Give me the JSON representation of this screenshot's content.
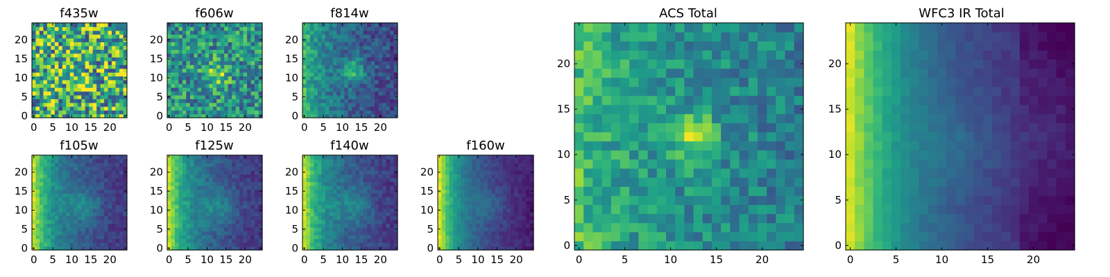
{
  "chart_data": [
    {
      "type": "heatmap",
      "title": "f435w",
      "pattern": "noisy",
      "grid": 25,
      "xlim": [
        0,
        24
      ],
      "ylim": [
        0,
        24
      ],
      "xticks": [
        "0",
        "5",
        "10",
        "15",
        "20"
      ],
      "yticks": [
        "0",
        "5",
        "10",
        "15",
        "20"
      ],
      "colormap": "viridis"
    },
    {
      "type": "heatmap",
      "title": "f606w",
      "pattern": "noisy_source",
      "grid": 25,
      "xlim": [
        0,
        24
      ],
      "ylim": [
        0,
        24
      ],
      "xticks": [
        "0",
        "5",
        "10",
        "15",
        "20"
      ],
      "yticks": [
        "0",
        "5",
        "10",
        "15",
        "20"
      ],
      "colormap": "viridis"
    },
    {
      "type": "heatmap",
      "title": "f814w",
      "pattern": "source_edge",
      "grid": 25,
      "xlim": [
        0,
        24
      ],
      "ylim": [
        0,
        24
      ],
      "xticks": [
        "0",
        "5",
        "10",
        "15",
        "20"
      ],
      "yticks": [
        "0",
        "5",
        "10",
        "15",
        "20"
      ],
      "colormap": "viridis"
    },
    {
      "type": "heatmap",
      "title": "f105w",
      "pattern": "ir",
      "grid": 25,
      "xlim": [
        0,
        24
      ],
      "ylim": [
        0,
        24
      ],
      "xticks": [
        "0",
        "5",
        "10",
        "15",
        "20"
      ],
      "yticks": [
        "0",
        "5",
        "10",
        "15",
        "20"
      ],
      "colormap": "viridis"
    },
    {
      "type": "heatmap",
      "title": "f125w",
      "pattern": "ir",
      "grid": 25,
      "xlim": [
        0,
        24
      ],
      "ylim": [
        0,
        24
      ],
      "xticks": [
        "0",
        "5",
        "10",
        "15",
        "20"
      ],
      "yticks": [
        "0",
        "5",
        "10",
        "15",
        "20"
      ],
      "colormap": "viridis"
    },
    {
      "type": "heatmap",
      "title": "f140w",
      "pattern": "ir",
      "grid": 25,
      "xlim": [
        0,
        24
      ],
      "ylim": [
        0,
        24
      ],
      "xticks": [
        "0",
        "5",
        "10",
        "15",
        "20"
      ],
      "yticks": [
        "0",
        "5",
        "10",
        "15",
        "20"
      ],
      "colormap": "viridis"
    },
    {
      "type": "heatmap",
      "title": "f160w",
      "pattern": "ir_smooth",
      "grid": 25,
      "xlim": [
        0,
        24
      ],
      "ylim": [
        0,
        24
      ],
      "xticks": [
        "0",
        "5",
        "10",
        "15",
        "20"
      ],
      "yticks": [
        "0",
        "5",
        "10",
        "15",
        "20"
      ],
      "colormap": "viridis"
    },
    {
      "type": "heatmap",
      "title": "ACS Total",
      "pattern": "acs_total",
      "grid": 25,
      "xlim": [
        0,
        24
      ],
      "ylim": [
        0,
        24
      ],
      "xticks": [
        "0",
        "5",
        "10",
        "15",
        "20"
      ],
      "yticks": [
        "0",
        "5",
        "10",
        "15",
        "20"
      ],
      "colormap": "viridis"
    },
    {
      "type": "heatmap",
      "title": "WFC3 IR Total",
      "pattern": "ir_total",
      "grid": 25,
      "xlim": [
        0,
        24
      ],
      "ylim": [
        0,
        24
      ],
      "xticks": [
        "0",
        "5",
        "10",
        "15",
        "20"
      ],
      "yticks": [
        "0",
        "5",
        "10",
        "15",
        "20"
      ],
      "colormap": "viridis"
    }
  ]
}
